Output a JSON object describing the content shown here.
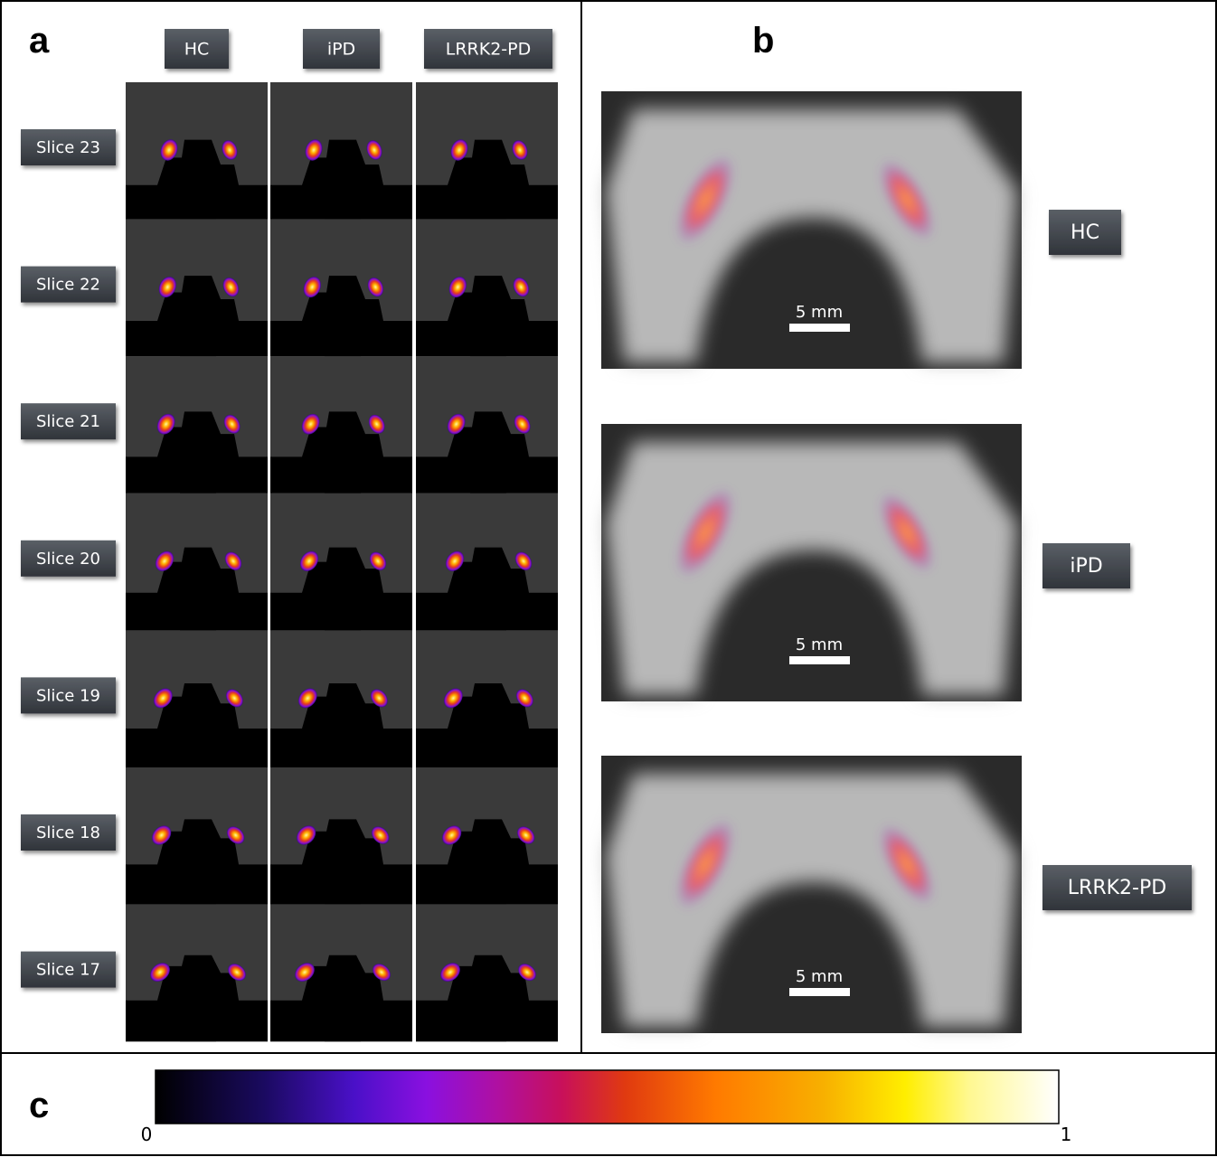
{
  "panel_a": {
    "label": "a",
    "columns": [
      "HC",
      "iPD",
      "LRRK2-PD"
    ],
    "rows": [
      "Slice 23",
      "Slice 22",
      "Slice 21",
      "Slice 20",
      "Slice 19",
      "Slice 18",
      "Slice 17"
    ]
  },
  "panel_b": {
    "label": "b",
    "images": [
      {
        "label": "HC",
        "scale": "5 mm"
      },
      {
        "label": "iPD",
        "scale": "5 mm"
      },
      {
        "label": "LRRK2-PD",
        "scale": "5 mm"
      }
    ]
  },
  "panel_c": {
    "label": "c",
    "colorbar": {
      "lim": [
        0,
        1
      ],
      "ticks": [
        0,
        1
      ]
    }
  }
}
